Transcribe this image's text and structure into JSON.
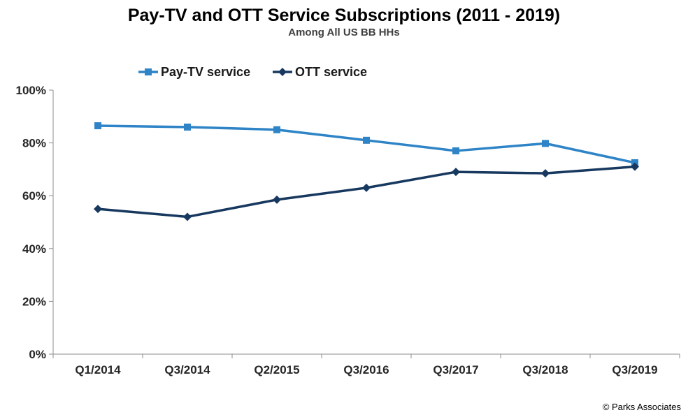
{
  "chart_data": {
    "type": "line",
    "title": "Pay-TV and OTT Service Subscriptions (2011 - 2019)",
    "subtitle": "Among All  US BB HHs",
    "xlabel": "",
    "ylabel": "",
    "categories": [
      "Q1/2014",
      "Q3/2014",
      "Q2/2015",
      "Q3/2016",
      "Q3/2017",
      "Q3/2018",
      "Q3/2019"
    ],
    "ylim": [
      0,
      100
    ],
    "yticks": [
      "0%",
      "20%",
      "40%",
      "60%",
      "80%",
      "100%"
    ],
    "grid": false,
    "legend_position": "top",
    "series": [
      {
        "name": "Pay-TV service",
        "color": "#2e84c6",
        "marker": "square",
        "values": [
          86.5,
          86,
          85,
          81,
          77,
          79.8,
          72.5
        ]
      },
      {
        "name": "OTT service",
        "color": "#17385f",
        "marker": "diamond",
        "values": [
          55,
          52,
          58.5,
          63,
          69,
          68.5,
          71
        ]
      }
    ]
  },
  "credit": "© Parks Associates"
}
